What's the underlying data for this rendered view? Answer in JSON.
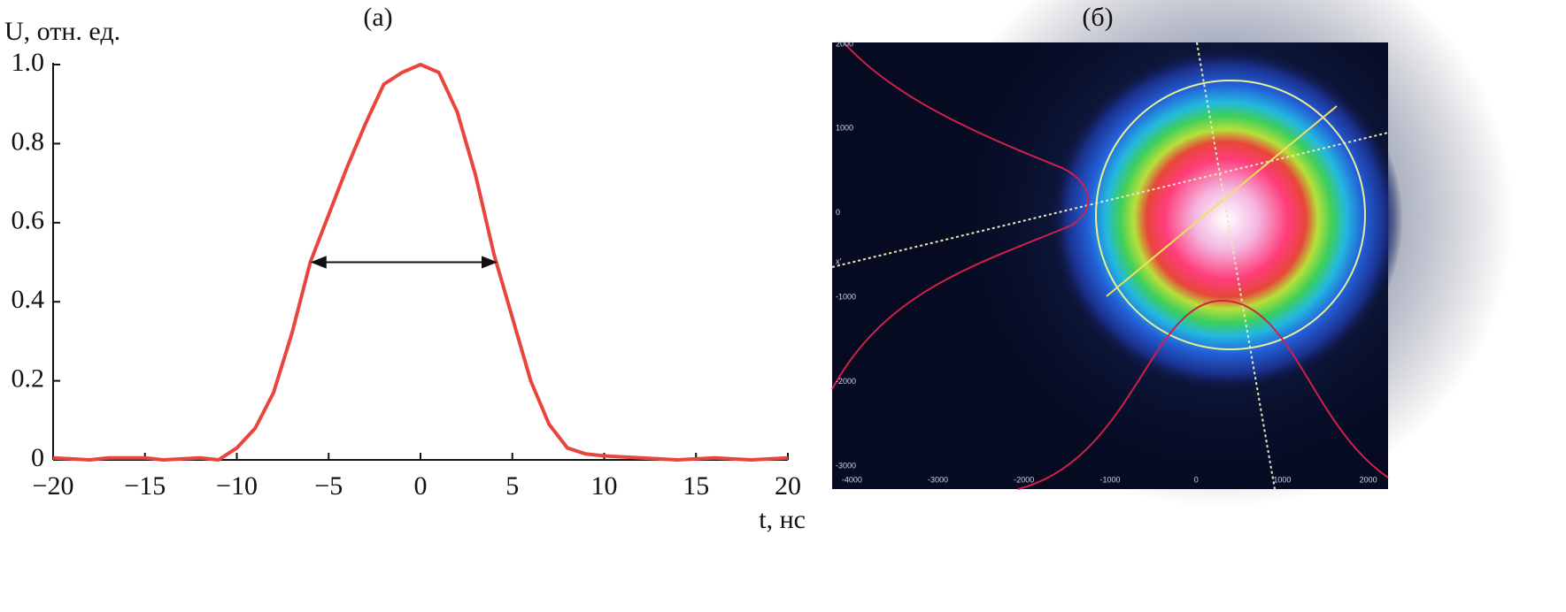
{
  "chart_data": [
    {
      "type": "line",
      "title": "(а)",
      "y_label": "U, отн. ед.",
      "x_label": "t, нс",
      "x": [
        -20,
        -18,
        -17,
        -15,
        -14,
        -12,
        -11,
        -10,
        -9,
        -8,
        -7,
        -6,
        -5,
        -4,
        -3,
        -2,
        -1,
        0,
        1,
        2,
        3,
        4,
        5,
        6,
        7,
        8,
        9,
        10,
        12,
        14,
        16,
        18,
        20
      ],
      "values": [
        0.005,
        0,
        0.005,
        0.005,
        0,
        0.005,
        0,
        0.03,
        0.08,
        0.17,
        0.32,
        0.5,
        0.62,
        0.74,
        0.85,
        0.95,
        0.98,
        1.0,
        0.98,
        0.88,
        0.72,
        0.52,
        0.36,
        0.2,
        0.09,
        0.03,
        0.015,
        0.01,
        0.005,
        0,
        0.005,
        0,
        0.005
      ],
      "color": "#e8453c",
      "arrow": {
        "x": [
          -5.9,
          4.1
        ],
        "y": 0.5
      },
      "xlim": [
        -20,
        20
      ],
      "xticks": [
        {
          "value": -20,
          "label": "−20"
        },
        {
          "value": -15,
          "label": "−15"
        },
        {
          "value": -10,
          "label": "−10"
        },
        {
          "value": -5,
          "label": "−5"
        },
        0,
        5,
        10,
        15,
        20
      ],
      "ylim": [
        0,
        1
      ],
      "yticks": [
        0,
        0.2,
        0.4,
        0.6,
        0.8,
        {
          "value": 1,
          "label": "1.0"
        }
      ]
    },
    {
      "type": "image",
      "title": "(б)",
      "annotation": "x′",
      "xlim": [
        -4230,
        2230
      ],
      "xticks": [
        -4000,
        -3000,
        -2000,
        -1000,
        0,
        1000,
        2000
      ],
      "ylim": [
        -3270,
        2020
      ],
      "yticks": [
        2000,
        1000,
        0,
        -1000,
        -2000,
        -3000
      ]
    }
  ]
}
